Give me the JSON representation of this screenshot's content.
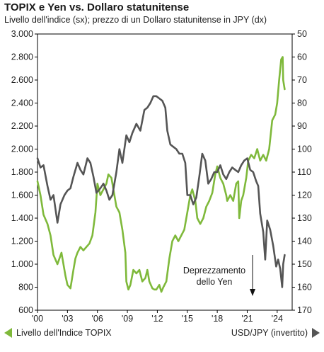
{
  "header": {
    "title": "TOPIX e Yen vs. Dollaro statunitense",
    "subtitle": "Livello dell'indice (sx); prezzo di un Dollaro statunitense in JPY (dx)"
  },
  "legend": {
    "left_label": "Livello dell'Indice TOPIX",
    "right_label": "USD/JPY (invertito)"
  },
  "annotation": {
    "line1": "Deprezzamento",
    "line2": "dello Yen"
  },
  "colors": {
    "topix": "#7fb93b",
    "usdjpy": "#555555",
    "axis": "#000000"
  },
  "chart_data": {
    "type": "line",
    "xlim": [
      2000,
      2025.5
    ],
    "x_ticks": [
      2000,
      2003,
      2006,
      2009,
      2012,
      2015,
      2018,
      2021,
      2024
    ],
    "x_tick_labels": [
      "'00",
      "'03",
      "'06",
      "'09",
      "'12",
      "'15",
      "'18",
      "'21",
      "'24"
    ],
    "y_left": {
      "lim": [
        600,
        3000
      ],
      "ticks": [
        600,
        800,
        1000,
        1200,
        1400,
        1600,
        1800,
        2000,
        2200,
        2400,
        2600,
        2800,
        3000
      ],
      "tick_labels": [
        "600",
        "800",
        "1.000",
        "1.200",
        "1.400",
        "1.600",
        "1.800",
        "2.000",
        "2.200",
        "2.400",
        "2.600",
        "2.800",
        "3.000"
      ]
    },
    "y_right": {
      "lim": [
        170,
        50
      ],
      "inverted": true,
      "ticks": [
        50,
        60,
        70,
        80,
        90,
        100,
        110,
        120,
        130,
        140,
        150,
        160,
        170
      ],
      "tick_labels": [
        "50",
        "60",
        "70",
        "80",
        "90",
        "100",
        "110",
        "120",
        "130",
        "140",
        "150",
        "160",
        "170"
      ]
    },
    "series": [
      {
        "name": "Livello dell'Indice TOPIX",
        "axis": "left",
        "x": [
          2000.0,
          2000.3,
          2000.6,
          2001.0,
          2001.3,
          2001.6,
          2002.0,
          2002.4,
          2002.8,
          2003.0,
          2003.3,
          2003.6,
          2003.8,
          2004.0,
          2004.3,
          2004.6,
          2004.9,
          2005.2,
          2005.5,
          2005.8,
          2006.0,
          2006.3,
          2006.6,
          2006.9,
          2007.1,
          2007.4,
          2007.6,
          2007.9,
          2008.2,
          2008.5,
          2008.8,
          2008.9,
          2009.1,
          2009.3,
          2009.6,
          2009.9,
          2010.2,
          2010.5,
          2010.8,
          2011.0,
          2011.2,
          2011.5,
          2011.7,
          2011.9,
          2012.2,
          2012.4,
          2012.6,
          2012.9,
          2013.2,
          2013.5,
          2013.8,
          2014.1,
          2014.4,
          2014.7,
          2015.0,
          2015.3,
          2015.5,
          2015.8,
          2016.0,
          2016.3,
          2016.6,
          2016.9,
          2017.2,
          2017.5,
          2017.8,
          2018.0,
          2018.3,
          2018.6,
          2018.9,
          2019.0,
          2019.3,
          2019.6,
          2019.9,
          2020.1,
          2020.2,
          2020.4,
          2020.6,
          2020.9,
          2021.1,
          2021.4,
          2021.7,
          2022.0,
          2022.3,
          2022.6,
          2022.9,
          2023.2,
          2023.5,
          2023.8,
          2024.0,
          2024.2,
          2024.4,
          2024.55,
          2024.6,
          2024.75
        ],
        "y": [
          1720,
          1600,
          1430,
          1350,
          1250,
          1080,
          1000,
          1100,
          900,
          820,
          790,
          950,
          1050,
          1100,
          1150,
          1120,
          1150,
          1180,
          1250,
          1450,
          1700,
          1600,
          1650,
          1700,
          1780,
          1750,
          1650,
          1500,
          1450,
          1300,
          1100,
          850,
          780,
          820,
          950,
          920,
          950,
          850,
          880,
          950,
          850,
          790,
          780,
          780,
          820,
          760,
          800,
          850,
          1050,
          1200,
          1250,
          1200,
          1250,
          1300,
          1450,
          1600,
          1650,
          1550,
          1400,
          1350,
          1400,
          1500,
          1550,
          1620,
          1780,
          1850,
          1750,
          1700,
          1600,
          1550,
          1600,
          1550,
          1700,
          1720,
          1400,
          1550,
          1600,
          1750,
          1900,
          1950,
          1920,
          2000,
          1900,
          1950,
          1900,
          2000,
          2250,
          2300,
          2400,
          2600,
          2780,
          2800,
          2600,
          2520
        ]
      },
      {
        "name": "USD/JPY (invertito)",
        "axis": "right",
        "x": [
          2000.0,
          2000.3,
          2000.6,
          2001.0,
          2001.3,
          2001.6,
          2002.0,
          2002.3,
          2002.7,
          2003.0,
          2003.3,
          2003.6,
          2004.0,
          2004.3,
          2004.6,
          2005.0,
          2005.3,
          2005.6,
          2005.9,
          2006.3,
          2006.6,
          2006.9,
          2007.2,
          2007.5,
          2007.9,
          2008.2,
          2008.5,
          2008.9,
          2009.2,
          2009.5,
          2009.9,
          2010.3,
          2010.7,
          2011.0,
          2011.3,
          2011.6,
          2011.9,
          2012.2,
          2012.5,
          2012.8,
          2013.0,
          2013.3,
          2013.6,
          2013.9,
          2014.2,
          2014.5,
          2014.8,
          2015.0,
          2015.3,
          2015.6,
          2015.9,
          2016.2,
          2016.5,
          2016.8,
          2017.1,
          2017.4,
          2017.7,
          2018.0,
          2018.3,
          2018.6,
          2018.9,
          2019.2,
          2019.5,
          2019.8,
          2020.1,
          2020.4,
          2020.7,
          2021.0,
          2021.3,
          2021.6,
          2021.9,
          2022.1,
          2022.3,
          2022.6,
          2022.8,
          2023.0,
          2023.3,
          2023.6,
          2023.9,
          2024.1,
          2024.3,
          2024.5,
          2024.6,
          2024.75
        ],
        "y": [
          104,
          108,
          107,
          116,
          122,
          120,
          132,
          124,
          120,
          118,
          117,
          112,
          106,
          109,
          111,
          104,
          106,
          112,
          119,
          117,
          115,
          118,
          122,
          120,
          110,
          100,
          106,
          94,
          97,
          93,
          89,
          92,
          83,
          82,
          80,
          77,
          77,
          78,
          79,
          82,
          92,
          98,
          99,
          100,
          102,
          102,
          106,
          120,
          120,
          124,
          121,
          112,
          102,
          105,
          115,
          113,
          110,
          110,
          107,
          111,
          113,
          110,
          108,
          109,
          110,
          107,
          105,
          104,
          109,
          110,
          114,
          116,
          128,
          136,
          148,
          131,
          135,
          142,
          151,
          148,
          152,
          160,
          150,
          146
        ]
      }
    ]
  }
}
